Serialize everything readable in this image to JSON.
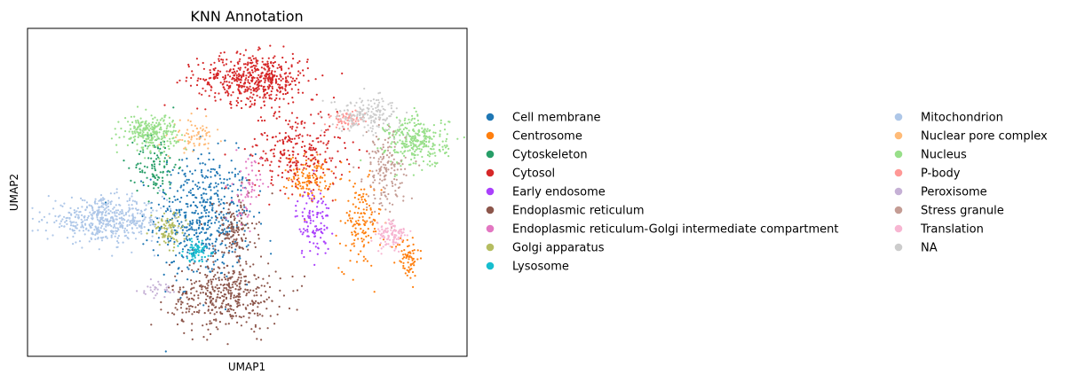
{
  "chart_data": {
    "type": "scatter",
    "title": "KNN Annotation",
    "xlabel": "UMAP1",
    "ylabel": "UMAP2",
    "xticks": "none",
    "yticks": "none",
    "grid": false,
    "legend_placement": "right, two columns",
    "series": [
      {
        "name": "Cell membrane",
        "color": "#1f77b4",
        "clusters": [
          {
            "cx": 5.6,
            "cy": 4.5,
            "sx": 1.4,
            "sy": 2.3,
            "n": 520
          }
        ]
      },
      {
        "name": "Centrosome",
        "color": "#ff7f0e",
        "clusters": [
          {
            "cx": 9.0,
            "cy": 6.1,
            "sx": 0.6,
            "sy": 0.8,
            "n": 140
          },
          {
            "cx": 10.6,
            "cy": 4.2,
            "sx": 0.6,
            "sy": 1.6,
            "n": 140
          },
          {
            "cx": 12.1,
            "cy": 2.9,
            "sx": 0.35,
            "sy": 0.8,
            "n": 70
          }
        ]
      },
      {
        "name": "Cytoskeleton",
        "color": "#279e68",
        "clusters": [
          {
            "cx": 4.1,
            "cy": 6.6,
            "sx": 0.6,
            "sy": 1.2,
            "n": 110
          }
        ]
      },
      {
        "name": "Cytosol",
        "color": "#d62728",
        "clusters": [
          {
            "cx": 7.2,
            "cy": 10.0,
            "sx": 1.6,
            "sy": 0.9,
            "n": 520
          },
          {
            "cx": 8.6,
            "cy": 7.2,
            "sx": 1.4,
            "sy": 1.5,
            "n": 260
          }
        ]
      },
      {
        "name": "Early endosome",
        "color": "#aa40fc",
        "clusters": [
          {
            "cx": 9.1,
            "cy": 4.3,
            "sx": 0.5,
            "sy": 1.3,
            "n": 110
          }
        ]
      },
      {
        "name": "Endoplasmic reticulum",
        "color": "#8c564b",
        "clusters": [
          {
            "cx": 6.3,
            "cy": 1.4,
            "sx": 1.6,
            "sy": 1.2,
            "n": 420
          },
          {
            "cx": 6.6,
            "cy": 3.9,
            "sx": 0.6,
            "sy": 1.3,
            "n": 150
          }
        ]
      },
      {
        "name": "Endoplasmic reticulum-Golgi intermediate compartment",
        "color": "#e377c2",
        "clusters": [
          {
            "cx": 7.0,
            "cy": 5.6,
            "sx": 0.4,
            "sy": 1.2,
            "n": 60
          }
        ]
      },
      {
        "name": "Golgi apparatus",
        "color": "#b5bd61",
        "clusters": [
          {
            "cx": 4.5,
            "cy": 4.0,
            "sx": 0.5,
            "sy": 0.6,
            "n": 90
          }
        ]
      },
      {
        "name": "Lysosome",
        "color": "#17becf",
        "clusters": [
          {
            "cx": 5.4,
            "cy": 3.2,
            "sx": 0.4,
            "sy": 0.4,
            "n": 70
          }
        ]
      },
      {
        "name": "Mitochondrion",
        "color": "#aec7e8",
        "clusters": [
          {
            "cx": 2.5,
            "cy": 4.4,
            "sx": 1.7,
            "sy": 0.75,
            "n": 500
          }
        ]
      },
      {
        "name": "Nuclear pore complex",
        "color": "#ffbb78",
        "clusters": [
          {
            "cx": 5.3,
            "cy": 7.7,
            "sx": 0.6,
            "sy": 0.6,
            "n": 70
          }
        ]
      },
      {
        "name": "Nucleus",
        "color": "#98df8a",
        "clusters": [
          {
            "cx": 3.9,
            "cy": 7.9,
            "sx": 0.8,
            "sy": 0.6,
            "n": 260
          },
          {
            "cx": 12.4,
            "cy": 7.5,
            "sx": 0.9,
            "sy": 0.9,
            "n": 300
          }
        ]
      },
      {
        "name": "P-body",
        "color": "#ff9896",
        "clusters": [
          {
            "cx": 10.2,
            "cy": 8.4,
            "sx": 0.5,
            "sy": 0.3,
            "n": 60
          }
        ]
      },
      {
        "name": "Peroxisome",
        "color": "#c5b0d5",
        "clusters": [
          {
            "cx": 4.1,
            "cy": 1.6,
            "sx": 0.5,
            "sy": 0.3,
            "n": 30
          }
        ]
      },
      {
        "name": "Stress granule",
        "color": "#c49c94",
        "clusters": [
          {
            "cx": 11.4,
            "cy": 6.3,
            "sx": 0.6,
            "sy": 1.4,
            "n": 160
          }
        ]
      },
      {
        "name": "Translation",
        "color": "#f7b6d2",
        "clusters": [
          {
            "cx": 11.6,
            "cy": 3.8,
            "sx": 0.45,
            "sy": 0.6,
            "n": 110
          }
        ]
      },
      {
        "name": "NA",
        "color": "#cccccc",
        "clusters": [
          {
            "cx": 10.8,
            "cy": 8.6,
            "sx": 1.0,
            "sy": 0.6,
            "n": 180
          }
        ]
      }
    ]
  }
}
